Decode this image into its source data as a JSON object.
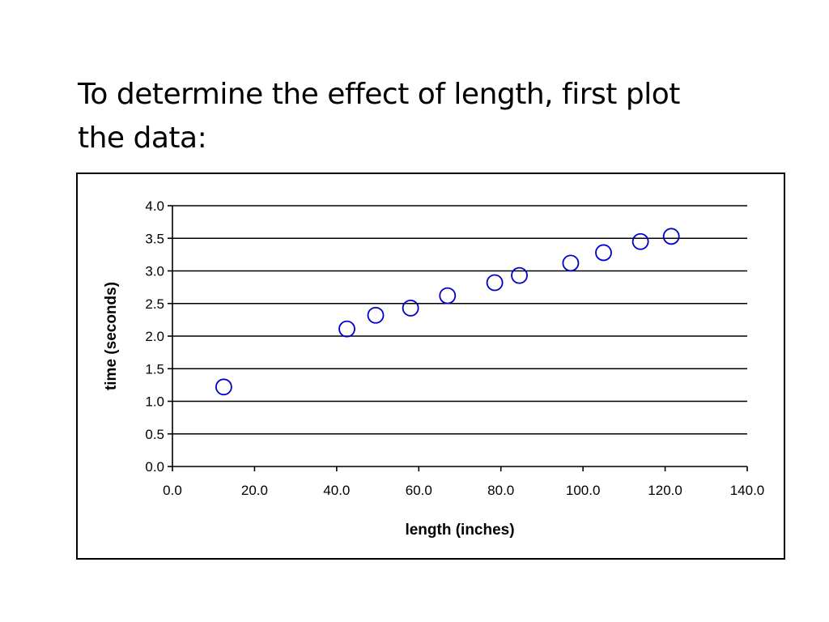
{
  "slide": {
    "title_line1": "To determine the effect of length, first plot",
    "title_line2": "the data:"
  },
  "chart_data": {
    "type": "scatter",
    "title": "",
    "xlabel": "length (inches)",
    "ylabel": "time (seconds)",
    "xlim": [
      0,
      140
    ],
    "ylim": [
      0,
      4
    ],
    "xticks": [
      "0.0",
      "20.0",
      "40.0",
      "60.0",
      "80.0",
      "100.0",
      "120.0",
      "140.0"
    ],
    "yticks": [
      "0.0",
      "0.5",
      "1.0",
      "1.5",
      "2.0",
      "2.5",
      "3.0",
      "3.5",
      "4.0"
    ],
    "grid": "horizontal",
    "marker": "open-circle",
    "color": "#0000cc",
    "points": [
      {
        "x": 12.5,
        "y": 1.22
      },
      {
        "x": 42.5,
        "y": 2.11
      },
      {
        "x": 49.5,
        "y": 2.32
      },
      {
        "x": 58.0,
        "y": 2.43
      },
      {
        "x": 67.0,
        "y": 2.62
      },
      {
        "x": 78.5,
        "y": 2.82
      },
      {
        "x": 84.5,
        "y": 2.93
      },
      {
        "x": 97.0,
        "y": 3.12
      },
      {
        "x": 105.0,
        "y": 3.28
      },
      {
        "x": 114.0,
        "y": 3.45
      },
      {
        "x": 121.5,
        "y": 3.53
      }
    ]
  }
}
